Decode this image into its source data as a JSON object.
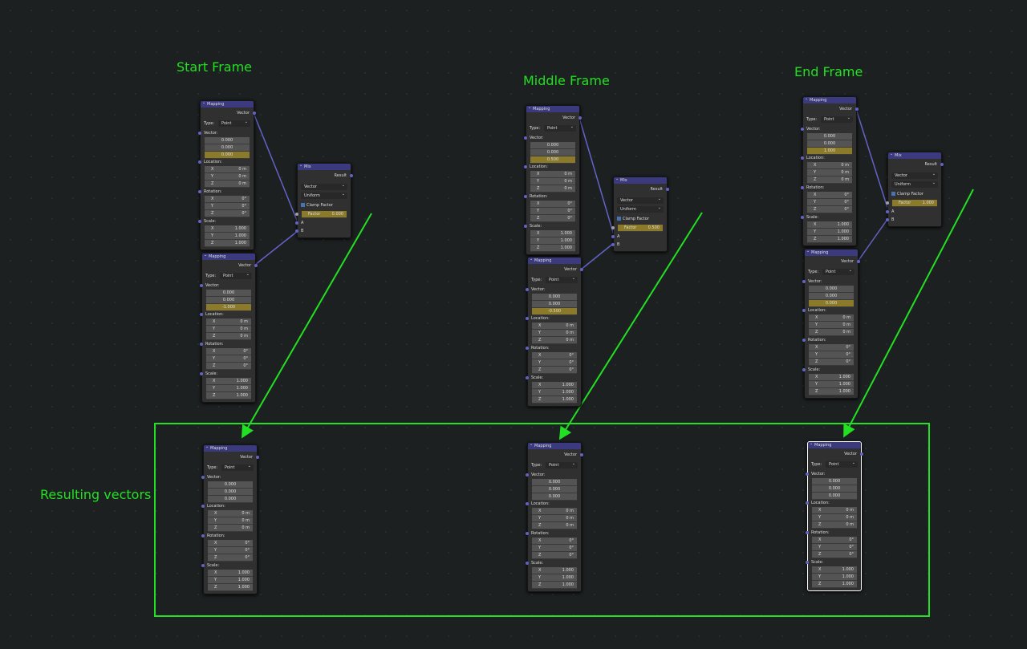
{
  "labels": {
    "start": "Start Frame",
    "middle": "Middle Frame",
    "end": "End Frame",
    "result": "Resulting vectors"
  },
  "colors": {
    "annotation": "#22e022",
    "node_header": "#3c3a7e",
    "highlight_field": "#8a7a2a",
    "link": "#6363c7"
  },
  "mapping_text": {
    "title": "Mapping",
    "output": "Vector",
    "type_label": "Type:",
    "type_value": "Point",
    "vector": "Vector:",
    "location": "Location:",
    "rotation": "Rotation:",
    "scale": "Scale:",
    "axes": [
      "X",
      "Y",
      "Z"
    ],
    "loc_unit": "0 m",
    "rot_unit": "0°",
    "scale_value": "1.000"
  },
  "mix_text": {
    "title": "Mix",
    "output": "Result",
    "data_type": "Vector",
    "factor_mode": "Uniform",
    "clamp": "Clamp Factor",
    "factor_label": "Factor",
    "a": "A",
    "b": "B"
  },
  "mapping_nodes": [
    {
      "vector": [
        "0.000",
        "0.000",
        "0.000"
      ],
      "highlight": true
    },
    {
      "vector": [
        "0.000",
        "0.000",
        "-1.000"
      ],
      "highlight": true
    },
    {
      "vector": [
        "0.000",
        "0.000",
        "0.500"
      ],
      "highlight": true
    },
    {
      "vector": [
        "0.000",
        "0.000",
        "-0.500"
      ],
      "highlight": true
    },
    {
      "vector": [
        "0.000",
        "0.000",
        "1.000"
      ],
      "highlight": true
    },
    {
      "vector": [
        "0.000",
        "0.000",
        "0.000"
      ],
      "highlight": true
    },
    {
      "vector": [
        "0.000",
        "0.000",
        "0.000"
      ],
      "highlight": false
    },
    {
      "vector": [
        "0.000",
        "0.000",
        "0.000"
      ],
      "highlight": false
    },
    {
      "vector": [
        "0.000",
        "0.000",
        "0.000"
      ],
      "highlight": false,
      "selected": true
    }
  ],
  "mix_nodes": [
    {
      "factor": "0.000"
    },
    {
      "factor": "0.500"
    },
    {
      "factor": "1.000"
    }
  ]
}
